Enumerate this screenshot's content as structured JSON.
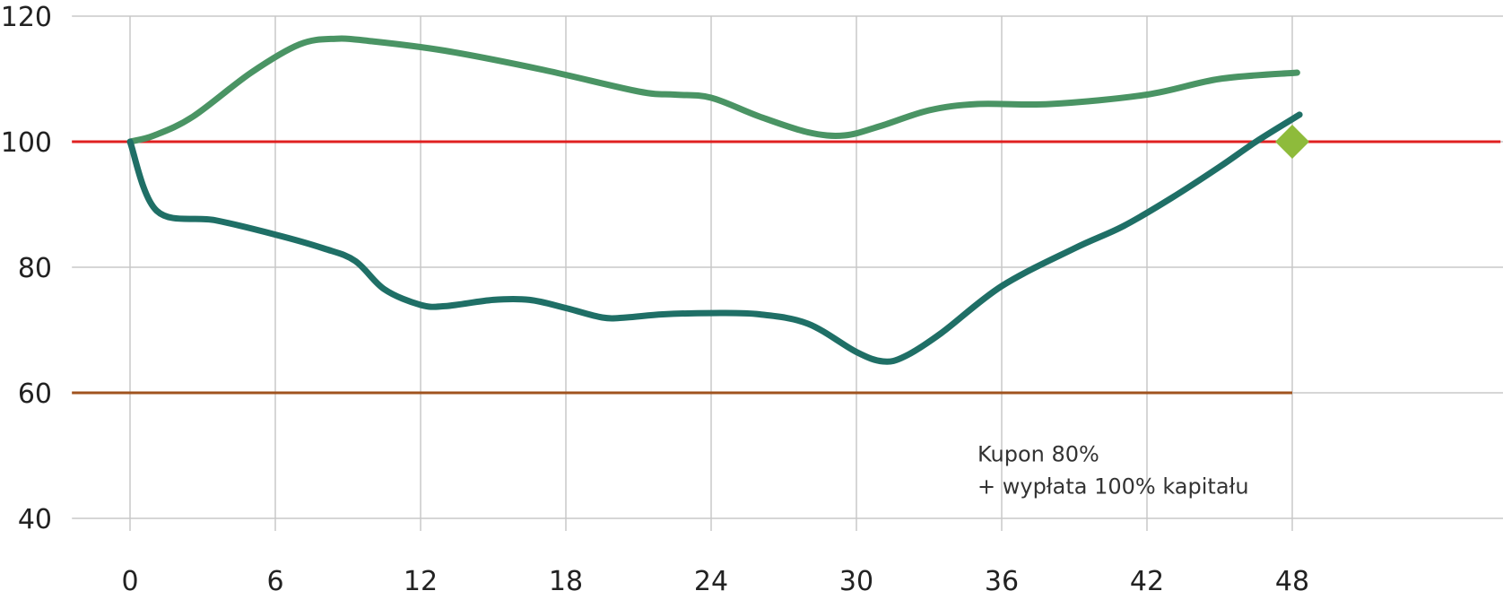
{
  "chart_data": {
    "type": "line",
    "title": "",
    "xlabel": "",
    "ylabel": "",
    "xlim": [
      0,
      48
    ],
    "ylim": [
      40,
      120
    ],
    "x_ticks": [
      0,
      6,
      12,
      18,
      24,
      30,
      36,
      42,
      48
    ],
    "y_ticks": [
      40,
      60,
      80,
      100,
      120
    ],
    "x_tick_labels": [
      "0",
      "6",
      "12",
      "18",
      "24",
      "30",
      "36",
      "42",
      "48"
    ],
    "y_tick_labels": [
      "40",
      "60",
      "80",
      "100",
      "120"
    ],
    "grid": true,
    "series": [
      {
        "color": "#4a9464",
        "points": [
          [
            0,
            100
          ],
          [
            1,
            101
          ],
          [
            2.6,
            104
          ],
          [
            5,
            111
          ],
          [
            7,
            115.5
          ],
          [
            8.5,
            116.4
          ],
          [
            10,
            116
          ],
          [
            13,
            114.5
          ],
          [
            17,
            111.5
          ],
          [
            21,
            108
          ],
          [
            22.5,
            107.5
          ],
          [
            24,
            107
          ],
          [
            26,
            104
          ],
          [
            28,
            101.5
          ],
          [
            29.5,
            101
          ],
          [
            31,
            102.5
          ],
          [
            33,
            105
          ],
          [
            35,
            106
          ],
          [
            38,
            106
          ],
          [
            42,
            107.5
          ],
          [
            45,
            110
          ],
          [
            48.2,
            111
          ]
        ]
      },
      {
        "color": "#1f6f66",
        "points": [
          [
            0,
            100
          ],
          [
            1.1,
            89
          ],
          [
            3.5,
            87.5
          ],
          [
            6,
            85.2
          ],
          [
            8,
            83
          ],
          [
            9.3,
            81
          ],
          [
            10.5,
            76.5
          ],
          [
            12,
            74
          ],
          [
            13,
            73.8
          ],
          [
            15,
            74.8
          ],
          [
            16.5,
            74.8
          ],
          [
            18,
            73.5
          ],
          [
            19.5,
            72
          ],
          [
            20.5,
            72
          ],
          [
            22,
            72.5
          ],
          [
            24,
            72.7
          ],
          [
            26,
            72.5
          ],
          [
            28,
            71
          ],
          [
            30,
            66.5
          ],
          [
            31.1,
            65
          ],
          [
            32,
            65.8
          ],
          [
            33.5,
            69.5
          ],
          [
            36,
            77
          ],
          [
            39,
            83
          ],
          [
            41,
            86.5
          ],
          [
            43,
            91
          ],
          [
            45,
            96
          ],
          [
            46.5,
            100
          ],
          [
            48.3,
            104.3
          ]
        ]
      }
    ],
    "reference_lines": [
      {
        "y": 100,
        "color": "#e02020",
        "x_from": -2.4,
        "x_to": 56.6
      },
      {
        "y": 60,
        "color": "#a0531e",
        "x_from": -2.4,
        "x_to": 48
      }
    ],
    "markers": [
      {
        "x": 48,
        "y": 100,
        "shape": "diamond",
        "color": "#8ebb3b"
      }
    ],
    "annotation": {
      "x": 35,
      "y": 48.5,
      "lines": [
        "Kupon 80%",
        "+ wypłata 100% kapitału"
      ]
    }
  }
}
